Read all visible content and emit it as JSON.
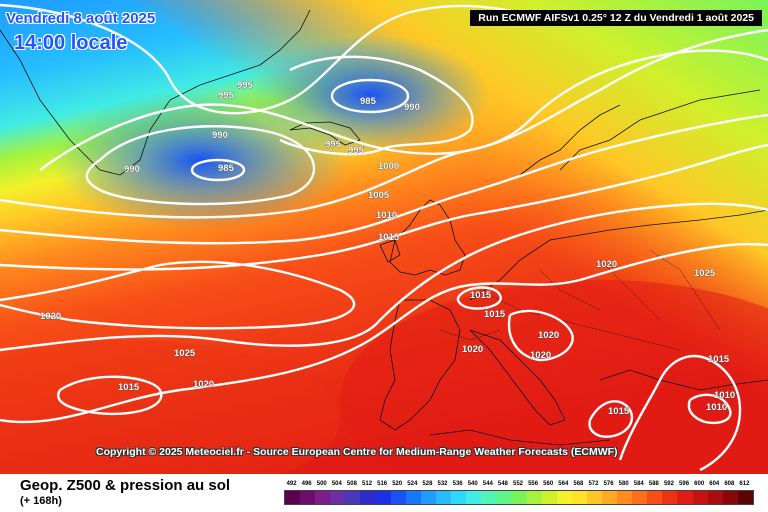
{
  "header": {
    "date": "Vendredi 8 août 2025",
    "time": "14:00 locale",
    "run": "Run ECMWF AIFSv1 0.25° 12 Z du Vendredi 1 août 2025"
  },
  "copyright": "Copyright © 2025 Meteociel.fr - Source European Centre for Medium-Range Weather Forecasts (ECMWF)",
  "footer": {
    "title": "Geop. Z500 & pression au sol",
    "subtitle": "(+ 168h)"
  },
  "legend": {
    "labels": [
      "492",
      "496",
      "500",
      "504",
      "508",
      "512",
      "516",
      "520",
      "524",
      "528",
      "532",
      "536",
      "540",
      "544",
      "548",
      "552",
      "556",
      "560",
      "564",
      "568",
      "572",
      "576",
      "580",
      "584",
      "588",
      "592",
      "596",
      "600",
      "604",
      "608",
      "612"
    ],
    "colors": [
      "#5a004f",
      "#6e0c6a",
      "#7d1d8a",
      "#6b2fa6",
      "#4b38b8",
      "#2c2ccc",
      "#1c31e6",
      "#1853f5",
      "#1877ff",
      "#1e9cff",
      "#26bcff",
      "#2fd8fd",
      "#41ece4",
      "#52f4b8",
      "#5ef58a",
      "#78f45a",
      "#a4f33c",
      "#cff02c",
      "#f4f02a",
      "#ffe129",
      "#ffc726",
      "#ffaa22",
      "#ff8c1e",
      "#ff6e1a",
      "#f84e17",
      "#ec3315",
      "#e11c14",
      "#c81212",
      "#a90d0d",
      "#880808",
      "#5c0404"
    ]
  },
  "isobars": [
    {
      "value": "995"
    },
    {
      "value": "995"
    },
    {
      "value": "985"
    },
    {
      "value": "990"
    },
    {
      "value": "990"
    },
    {
      "value": "985"
    },
    {
      "value": "990"
    },
    {
      "value": "995"
    },
    {
      "value": "995"
    },
    {
      "value": "1000"
    },
    {
      "value": "1005"
    },
    {
      "value": "1010"
    },
    {
      "value": "1015"
    },
    {
      "value": "1020"
    },
    {
      "value": "1025"
    },
    {
      "value": "1015"
    },
    {
      "value": "1015"
    },
    {
      "value": "1020"
    },
    {
      "value": "1020"
    },
    {
      "value": "1025"
    },
    {
      "value": "1020"
    },
    {
      "value": "1020"
    },
    {
      "value": "1015"
    },
    {
      "value": "1020"
    },
    {
      "value": "1015"
    },
    {
      "value": "1015"
    },
    {
      "value": "1010"
    },
    {
      "value": "1010"
    }
  ]
}
